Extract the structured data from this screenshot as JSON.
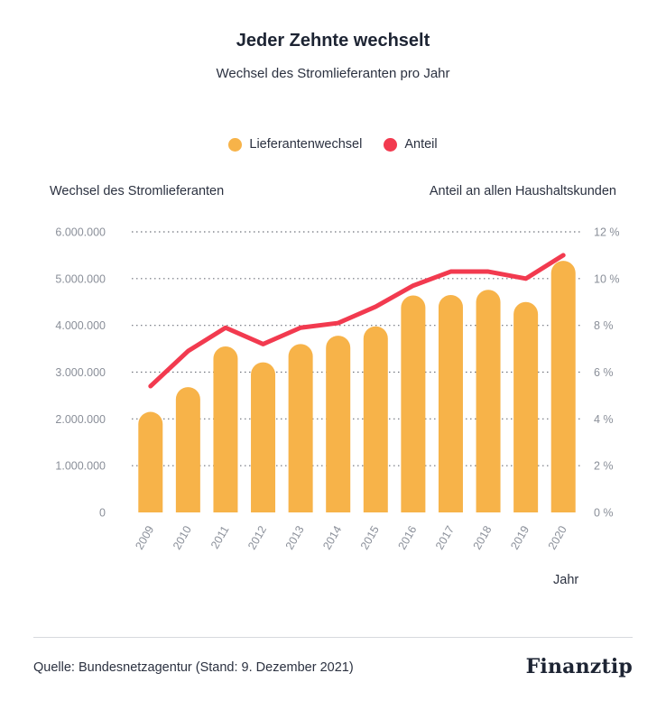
{
  "header": {
    "title": "Jeder Zehnte wechselt",
    "subtitle": "Wechsel des Stromlieferanten pro Jahr"
  },
  "legend": [
    {
      "label": "Lieferantenwechsel",
      "color": "#f7b349"
    },
    {
      "label": "Anteil",
      "color": "#f23a4f"
    }
  ],
  "axes": {
    "left_title": "Wechsel des Stromlieferanten",
    "right_title": "Anteil an allen Haushaltskunden",
    "x_title": "Jahr"
  },
  "footer": {
    "source": "Quelle: Bundesnetzagentur (Stand: 9. Dezember 2021)",
    "brand": "Finanztip"
  },
  "chart_data": {
    "type": "bar",
    "title": "Jeder Zehnte wechselt",
    "subtitle": "Wechsel des Stromlieferanten pro Jahr",
    "categories": [
      "2009",
      "2010",
      "2011",
      "2012",
      "2013",
      "2014",
      "2015",
      "2016",
      "2017",
      "2018",
      "2019",
      "2020"
    ],
    "series": [
      {
        "name": "Lieferantenwechsel",
        "type": "bar",
        "axis": "left",
        "color": "#f7b349",
        "values": [
          2150000,
          2680000,
          3550000,
          3210000,
          3600000,
          3780000,
          3980000,
          4640000,
          4650000,
          4760000,
          4500000,
          5380000
        ]
      },
      {
        "name": "Anteil",
        "type": "line",
        "axis": "right",
        "color": "#f23a4f",
        "values": [
          5.4,
          6.9,
          7.9,
          7.2,
          7.9,
          8.1,
          8.8,
          9.7,
          10.3,
          10.3,
          10.0,
          11.0
        ]
      }
    ],
    "ylim_left": [
      0,
      6000000
    ],
    "ylim_right": [
      0,
      12
    ],
    "y_ticks_left": [
      "0",
      "1.000.000",
      "2.000.000",
      "3.000.000",
      "4.000.000",
      "5.000.000",
      "6.000.000"
    ],
    "y_ticks_right": [
      "0 %",
      "2 %",
      "4 %",
      "6 %",
      "8 %",
      "10 %",
      "12 %"
    ],
    "ylabel_left": "Wechsel des Stromlieferanten",
    "ylabel_right": "Anteil an allen Haushaltskunden",
    "xlabel": "Jahr",
    "grid": true,
    "legend_position": "top-center"
  }
}
